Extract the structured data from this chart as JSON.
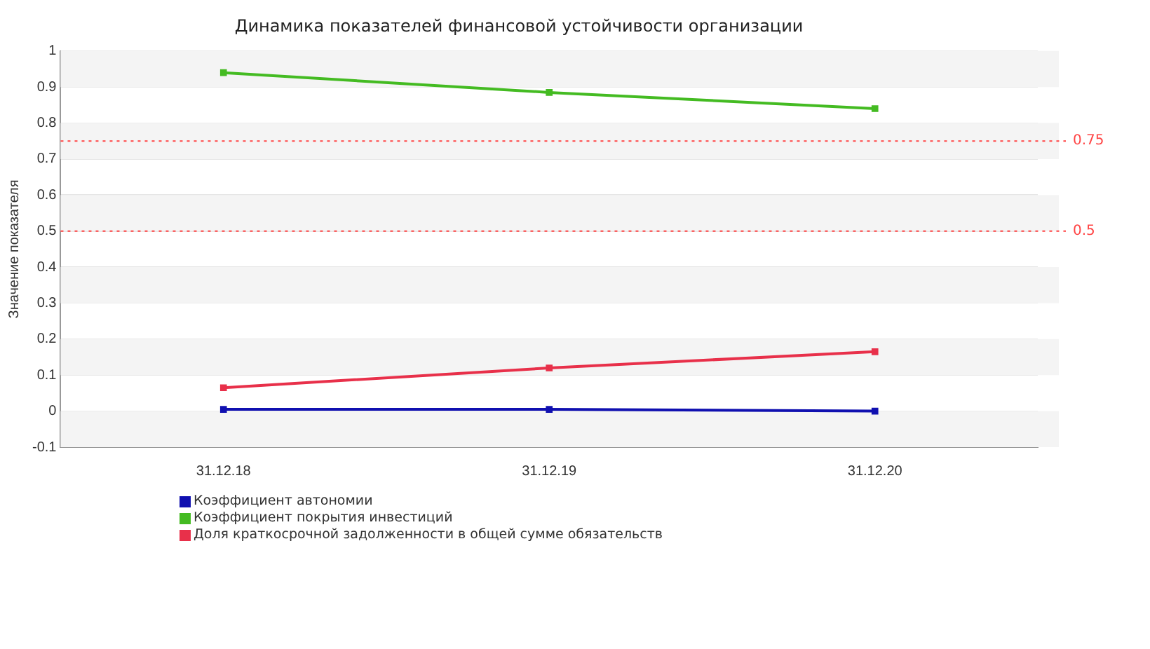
{
  "chart_data": {
    "type": "line",
    "title": "Динамика показателей финансовой устойчивости организации",
    "ylabel": "Значение показателя",
    "categories": [
      "31.12.18",
      "31.12.19",
      "31.12.20"
    ],
    "series": [
      {
        "name": "Коэффициент автономии",
        "color": "#1010b0",
        "values": [
          0.005,
          0.005,
          0
        ]
      },
      {
        "name": "Коэффициент покрытия инвестиций",
        "color": "#44bb22",
        "values": [
          0.94,
          0.885,
          0.84
        ]
      },
      {
        "name": "Доля краткосрочной задолженности в общей сумме обязательств",
        "color": "#e8304a",
        "values": [
          0.065,
          0.12,
          0.165
        ]
      }
    ],
    "ylim": [
      -0.1,
      1
    ],
    "yticks": [
      -0.1,
      0,
      0.1,
      0.2,
      0.3,
      0.4,
      0.5,
      0.6,
      0.7,
      0.8,
      0.9,
      1
    ],
    "ref_lines": [
      {
        "axis": "y",
        "value": 0.75,
        "label": "0.75",
        "color": "#ff4444",
        "line_style": "dotted"
      },
      {
        "axis": "y",
        "value": 0.5,
        "label": "0.5",
        "color": "#ff4444",
        "line_style": "dotted"
      }
    ],
    "grid": "y",
    "legend": "bottom",
    "marker": "square",
    "line_style": "solid"
  }
}
